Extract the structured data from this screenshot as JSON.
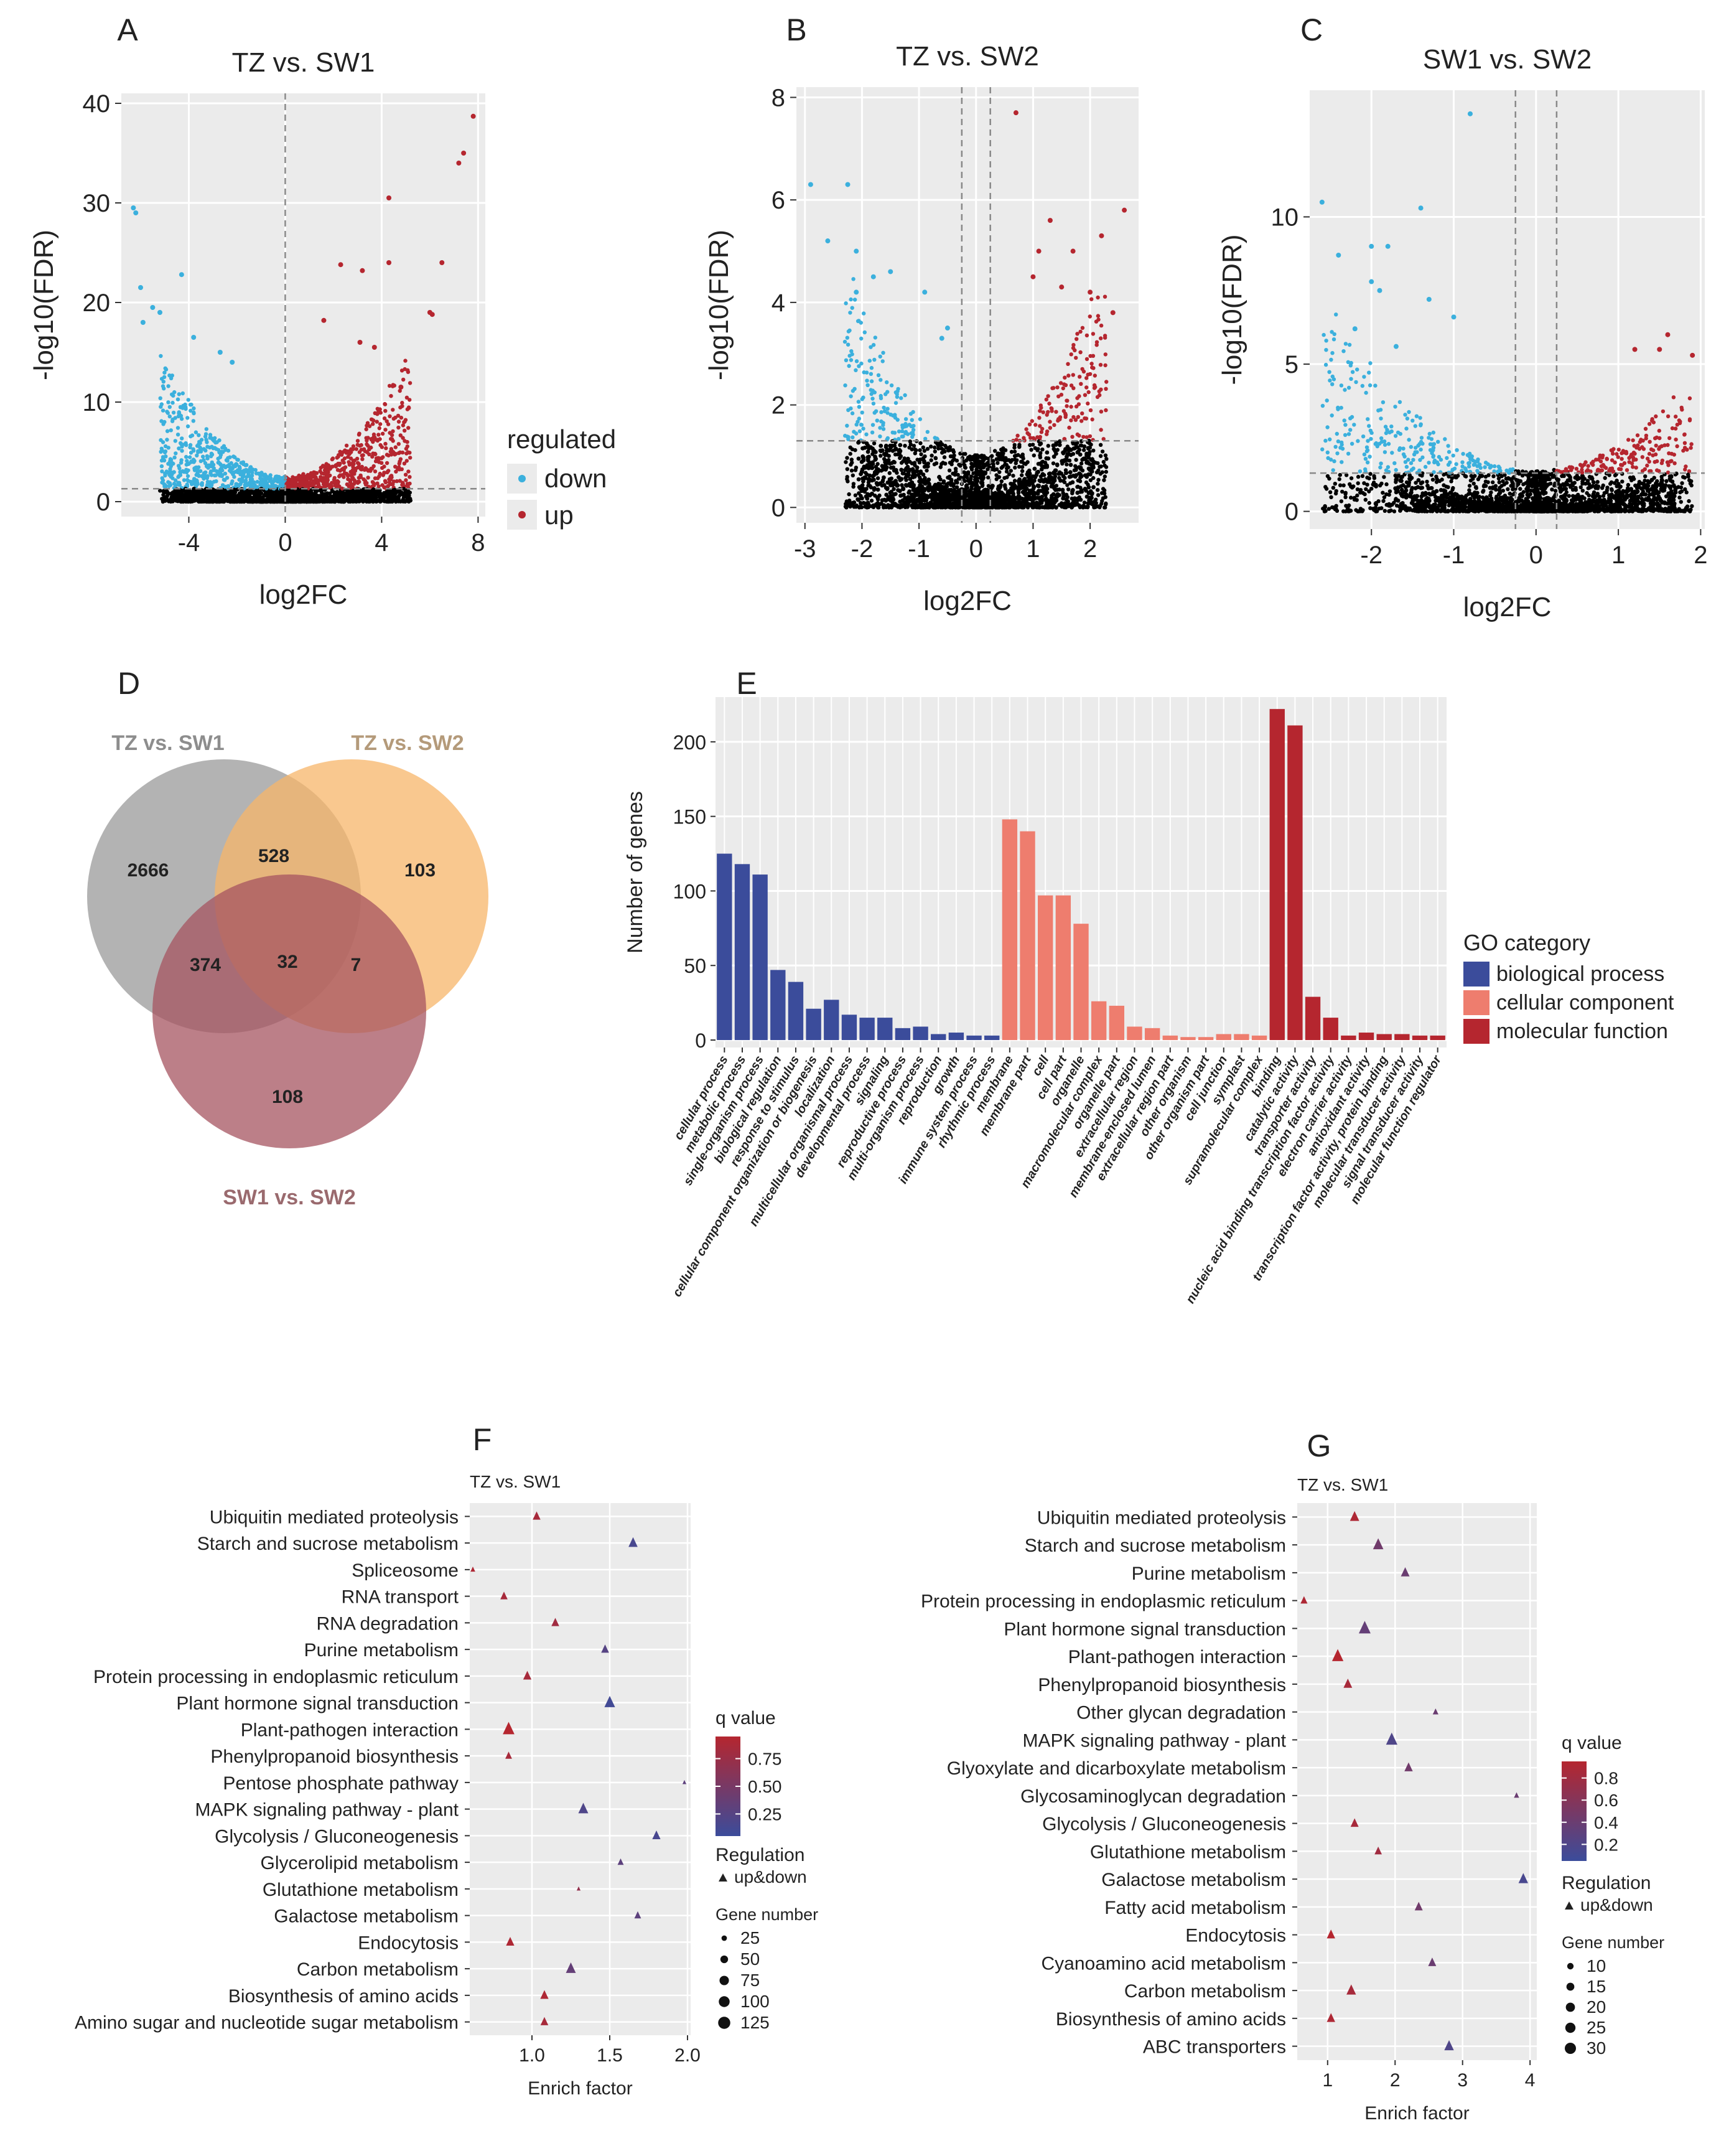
{
  "colors": {
    "down": "#3bb0dd",
    "up": "#b5262f",
    "ns": "#000000",
    "panel_bg": "#ebebeb",
    "grid": "#ffffff",
    "bp": "#3b4c9b",
    "cc": "#ee7d6e",
    "mf": "#b5262f",
    "venn1": "#9a9a9a",
    "venn2": "#f7b56a",
    "venn3": "#a55460",
    "q_low": "#3b4c9b",
    "q_high": "#b5262f"
  },
  "chart_data": [
    {
      "panel": "A",
      "type": "scatter",
      "title": "TZ vs. SW1",
      "xlabel": "log2FC",
      "ylabel": "-log10(FDR)",
      "xlim": [
        -6.8,
        8.3
      ],
      "ylim": [
        -1.5,
        41
      ],
      "xticks": [
        "-4",
        "0",
        "4",
        "8"
      ],
      "xtick_values": [
        -4,
        0,
        4,
        8
      ],
      "yticks": [
        "0",
        "10",
        "20",
        "30",
        "40"
      ],
      "ytick_values": [
        0,
        10,
        20,
        30,
        40
      ],
      "fc_cut": [
        0
      ],
      "fdr_cut": 1.3,
      "cloud_xspan": [
        -5.2,
        5.2
      ],
      "cloud_ymax": 14,
      "legend": {
        "title": "regulated",
        "items": [
          "down",
          "up"
        ]
      },
      "highlights": [
        [
          -6.3,
          29.5
        ],
        [
          -6.2,
          29
        ],
        [
          -6,
          21.5
        ],
        [
          -5.9,
          18
        ],
        [
          -5.5,
          19.5
        ],
        [
          -5.2,
          19
        ],
        [
          -4.3,
          22.8
        ],
        [
          -3.8,
          16.5
        ],
        [
          -2.7,
          15
        ],
        [
          -2.2,
          14
        ],
        [
          7.8,
          38.7
        ],
        [
          7.4,
          35
        ],
        [
          7.2,
          34
        ],
        [
          4.3,
          30.5
        ],
        [
          4.3,
          24
        ],
        [
          6.5,
          24
        ],
        [
          2.3,
          23.8
        ],
        [
          3.2,
          23.2
        ],
        [
          6,
          19
        ],
        [
          6.1,
          18.8
        ],
        [
          1.6,
          18.2
        ],
        [
          3.1,
          16
        ],
        [
          3.7,
          15.5
        ],
        [
          4.8,
          11.5
        ]
      ]
    },
    {
      "panel": "B",
      "type": "scatter",
      "title": "TZ vs. SW2",
      "xlabel": "log2FC",
      "ylabel": "-log10(FDR)",
      "xlim": [
        -3.15,
        2.85
      ],
      "ylim": [
        -0.3,
        8.2
      ],
      "xticks": [
        "-3",
        "-2",
        "-1",
        "0",
        "1",
        "2"
      ],
      "xtick_values": [
        -3,
        -2,
        -1,
        0,
        1,
        2
      ],
      "yticks": [
        "0",
        "2",
        "4",
        "6",
        "8"
      ],
      "ytick_values": [
        0,
        2,
        4,
        6,
        8
      ],
      "fc_cut": [
        -0.25,
        0.25
      ],
      "fdr_cut": 1.3,
      "cloud_xspan": [
        -2.3,
        2.3
      ],
      "cloud_ymax": 4.2,
      "highlights": [
        [
          -2.9,
          6.3
        ],
        [
          -2.6,
          5.2
        ],
        [
          -2.25,
          6.3
        ],
        [
          -2.1,
          5
        ],
        [
          -2.1,
          4.2
        ],
        [
          -1.8,
          4.5
        ],
        [
          -1.5,
          4.6
        ],
        [
          -0.9,
          4.2
        ],
        [
          -0.5,
          3.5
        ],
        [
          -0.6,
          3.3
        ],
        [
          0.7,
          7.7
        ],
        [
          2.6,
          5.8
        ],
        [
          1.3,
          5.6
        ],
        [
          1.1,
          5
        ],
        [
          1.7,
          5
        ],
        [
          2.2,
          5.3
        ],
        [
          1,
          4.5
        ],
        [
          2,
          4.2
        ],
        [
          2.4,
          3.8
        ],
        [
          1.5,
          4.3
        ]
      ]
    },
    {
      "panel": "C",
      "type": "scatter",
      "title": "SW1 vs. SW2",
      "xlabel": "log2FC",
      "ylabel": "-log10(FDR)",
      "xlim": [
        -2.75,
        2.05
      ],
      "ylim": [
        -0.6,
        14.3
      ],
      "xticks": [
        "-2",
        "-1",
        "0",
        "1",
        "2"
      ],
      "xtick_values": [
        -2,
        -1,
        0,
        1,
        2
      ],
      "yticks": [
        "0",
        "5",
        "10"
      ],
      "ytick_values": [
        0,
        5,
        10
      ],
      "fc_cut": [
        -0.25,
        0.25
      ],
      "fdr_cut": 1.3,
      "cloud_xspan": [
        -2.6,
        1.9
      ],
      "cloud_ymax": 6.5,
      "highlights": [
        [
          -0.8,
          13.5
        ],
        [
          -2.6,
          10.5
        ],
        [
          -2.4,
          8.7
        ],
        [
          -1.4,
          10.3
        ],
        [
          -2,
          9
        ],
        [
          -1.8,
          9
        ],
        [
          -2,
          7.8
        ],
        [
          -1.9,
          7.5
        ],
        [
          -1,
          6.6
        ],
        [
          -2.2,
          6.2
        ],
        [
          -1.3,
          7.2
        ],
        [
          -1.7,
          5.6
        ],
        [
          1.9,
          5.3
        ],
        [
          1.6,
          6
        ],
        [
          1.5,
          5.5
        ],
        [
          1.2,
          5.5
        ]
      ]
    },
    {
      "panel": "E",
      "type": "bar",
      "ylabel": "Number of genes",
      "ylim": [
        -5,
        230
      ],
      "yticks": [
        "0",
        "50",
        "100",
        "150",
        "200"
      ],
      "ytick_values": [
        0,
        50,
        100,
        150,
        200
      ],
      "legend": {
        "title": "GO category",
        "items": [
          "biological process",
          "cellular component",
          "molecular function"
        ]
      },
      "categories": [
        "cellular process",
        "metabolic process",
        "single-organism process",
        "biological regulation",
        "response to stimulus",
        "cellular component organization or biogenesis",
        "localization",
        "multicellular organismal process",
        "developmental process",
        "signaling",
        "reproductive process",
        "multi-organism process",
        "reproduction",
        "growth",
        "immune system process",
        "rhythmic process",
        "membrane",
        "membrane part",
        "cell",
        "cell part",
        "organelle",
        "macromolecular complex",
        "organelle part",
        "extracellular region",
        "membrane-enclosed lumen",
        "extracellular region part",
        "other organism",
        "other organism part",
        "cell junction",
        "symplast",
        "supramolecular complex",
        "binding",
        "catalytic activity",
        "transporter activity",
        "nucleic acid binding transcription factor activity",
        "electron carrier activity",
        "antioxidant activity",
        "transcription factor activity, protein binding",
        "molecular transducer activity",
        "signal transducer activity",
        "molecular function regulator"
      ],
      "groups": [
        "bp",
        "bp",
        "bp",
        "bp",
        "bp",
        "bp",
        "bp",
        "bp",
        "bp",
        "bp",
        "bp",
        "bp",
        "bp",
        "bp",
        "bp",
        "bp",
        "cc",
        "cc",
        "cc",
        "cc",
        "cc",
        "cc",
        "cc",
        "cc",
        "cc",
        "cc",
        "cc",
        "cc",
        "cc",
        "cc",
        "cc",
        "mf",
        "mf",
        "mf",
        "mf",
        "mf",
        "mf",
        "mf",
        "mf",
        "mf",
        "mf"
      ],
      "values": [
        125,
        118,
        111,
        47,
        39,
        21,
        27,
        17,
        15,
        15,
        8,
        9,
        4,
        5,
        3,
        3,
        148,
        140,
        97,
        97,
        78,
        26,
        23,
        9,
        8,
        3,
        2,
        2,
        4,
        4,
        3,
        222,
        211,
        29,
        15,
        3,
        5,
        4,
        4,
        3,
        3
      ]
    },
    {
      "panel": "F",
      "type": "scatter",
      "title": "TZ vs. SW1",
      "xlabel": "Enrich factor",
      "xlim": [
        0.6,
        2.02
      ],
      "xticks": [
        "1.0",
        "1.5",
        "2.0"
      ],
      "xtick_values": [
        1,
        1.5,
        2
      ],
      "categories": [
        "Ubiquitin mediated proteolysis",
        "Starch and sucrose metabolism",
        "Spliceosome",
        "RNA transport",
        "RNA degradation",
        "Purine metabolism",
        "Protein processing in endoplasmic reticulum",
        "Plant hormone signal transduction",
        "Plant-pathogen interaction",
        "Phenylpropanoid biosynthesis",
        "Pentose phosphate pathway",
        "MAPK signaling pathway - plant",
        "Glycolysis / Gluconeogenesis",
        "Glycerolipid metabolism",
        "Glutathione metabolism",
        "Galactose metabolism",
        "Endocytosis",
        "Carbon metabolism",
        "Biosynthesis of amino acids",
        "Amino sugar and nucleotide sugar metabolism"
      ],
      "x": [
        1.03,
        1.65,
        0.62,
        0.82,
        1.15,
        1.47,
        0.97,
        1.5,
        0.85,
        0.85,
        1.98,
        1.33,
        1.8,
        1.57,
        1.3,
        1.68,
        0.86,
        1.25,
        1.08,
        1.08
      ],
      "q": [
        0.85,
        0.15,
        0.9,
        0.85,
        0.8,
        0.25,
        0.85,
        0.1,
        0.95,
        0.85,
        0.3,
        0.2,
        0.15,
        0.3,
        0.7,
        0.3,
        0.9,
        0.35,
        0.9,
        0.85
      ],
      "genes": [
        40,
        55,
        15,
        35,
        40,
        40,
        45,
        75,
        90,
        30,
        10,
        65,
        45,
        25,
        10,
        30,
        45,
        65,
        45,
        40
      ],
      "q_legend": {
        "title": "q value",
        "ticks": [
          "0.75",
          "0.50",
          "0.25"
        ],
        "tick_values": [
          0.75,
          0.5,
          0.25
        ],
        "range": [
          0.05,
          0.95
        ]
      },
      "reg_legend": {
        "title": "Regulation",
        "item": "up&down"
      },
      "size_legend": {
        "title": "Gene number",
        "labels": [
          "25",
          "50",
          "75",
          "100",
          "125"
        ],
        "values": [
          25,
          50,
          75,
          100,
          125
        ]
      }
    },
    {
      "panel": "G",
      "type": "scatter",
      "title": "TZ vs. SW1",
      "xlabel": "Enrich factor",
      "xlim": [
        0.55,
        4.1
      ],
      "xticks": [
        "1",
        "2",
        "3",
        "4"
      ],
      "xtick_values": [
        1,
        2,
        3,
        4
      ],
      "categories": [
        "Ubiquitin mediated proteolysis",
        "Starch and sucrose metabolism",
        "Purine metabolism",
        "Protein processing in endoplasmic reticulum",
        "Plant hormone signal transduction",
        "Plant-pathogen interaction",
        "Phenylpropanoid biosynthesis",
        "Other glycan degradation",
        "MAPK signaling pathway - plant",
        "Glyoxylate and dicarboxylate metabolism",
        "Glycosaminoglycan degradation",
        "Glycolysis / Gluconeogenesis",
        "Glutathione metabolism",
        "Galactose metabolism",
        "Fatty acid metabolism",
        "Endocytosis",
        "Cyanoamino acid metabolism",
        "Carbon metabolism",
        "Biosynthesis of amino acids",
        "ABC transporters"
      ],
      "x": [
        1.4,
        1.75,
        2.15,
        0.65,
        1.55,
        1.15,
        1.3,
        2.6,
        1.95,
        2.2,
        3.8,
        1.4,
        1.75,
        3.9,
        2.35,
        1.05,
        2.55,
        1.35,
        1.05,
        2.8
      ],
      "q": [
        0.9,
        0.45,
        0.4,
        0.9,
        0.35,
        0.95,
        0.85,
        0.4,
        0.2,
        0.45,
        0.4,
        0.85,
        0.8,
        0.15,
        0.45,
        0.95,
        0.4,
        0.85,
        0.9,
        0.2
      ],
      "genes": [
        16,
        20,
        14,
        9,
        26,
        24,
        14,
        6,
        24,
        13,
        5,
        12,
        10,
        17,
        12,
        13,
        12,
        17,
        13,
        17
      ],
      "q_legend": {
        "title": "q value",
        "ticks": [
          "0.8",
          "0.6",
          "0.4",
          "0.2"
        ],
        "tick_values": [
          0.8,
          0.6,
          0.4,
          0.2
        ],
        "range": [
          0.05,
          0.95
        ]
      },
      "reg_legend": {
        "title": "Regulation",
        "item": "up&down"
      },
      "size_legend": {
        "title": "Gene number",
        "labels": [
          "10",
          "15",
          "20",
          "25",
          "30"
        ],
        "values": [
          10,
          15,
          20,
          25,
          30
        ]
      }
    }
  ],
  "venn": {
    "panel": "D",
    "sets": [
      "TZ vs. SW1",
      "TZ vs. SW2",
      "SW1 vs. SW2"
    ],
    "regions": {
      "only1": "2666",
      "only2": "103",
      "only3": "108",
      "r12": "528",
      "r13": "374",
      "r23": "7",
      "r123": "32"
    }
  }
}
